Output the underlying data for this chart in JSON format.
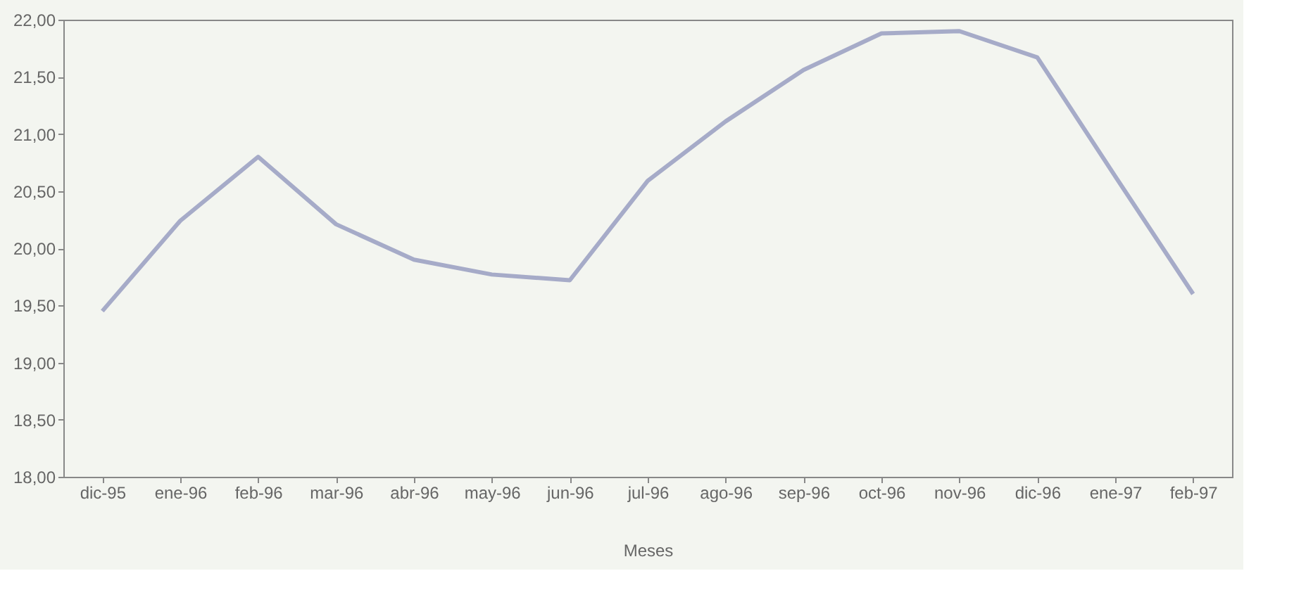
{
  "chart_data": {
    "type": "line",
    "xlabel": "Meses",
    "categories": [
      "dic-95",
      "ene-96",
      "feb-96",
      "mar-96",
      "abr-96",
      "may-96",
      "jun-96",
      "jul-96",
      "ago-96",
      "sep-96",
      "oct-96",
      "nov-96",
      "dic-96",
      "ene-97",
      "feb-97"
    ],
    "series": [
      {
        "color": "#a6abc8",
        "values": [
          19.45,
          20.24,
          20.8,
          20.21,
          19.9,
          19.77,
          19.72,
          20.59,
          21.11,
          21.56,
          21.88,
          21.9,
          21.67,
          20.63,
          19.6
        ]
      }
    ],
    "ylim": [
      18,
      22
    ],
    "yticks": [
      {
        "value": 18,
        "label": "18,00"
      },
      {
        "value": 18.5,
        "label": "18,50"
      },
      {
        "value": 19,
        "label": "19,00"
      },
      {
        "value": 19.5,
        "label": "19,50"
      },
      {
        "value": 20,
        "label": "20,00"
      },
      {
        "value": 20.5,
        "label": "20,50"
      },
      {
        "value": 21,
        "label": "21,00"
      },
      {
        "value": 21.5,
        "label": "21,50"
      },
      {
        "value": 22,
        "label": "22,00"
      }
    ],
    "grid": false,
    "marker": "none",
    "line_style": "solid"
  }
}
